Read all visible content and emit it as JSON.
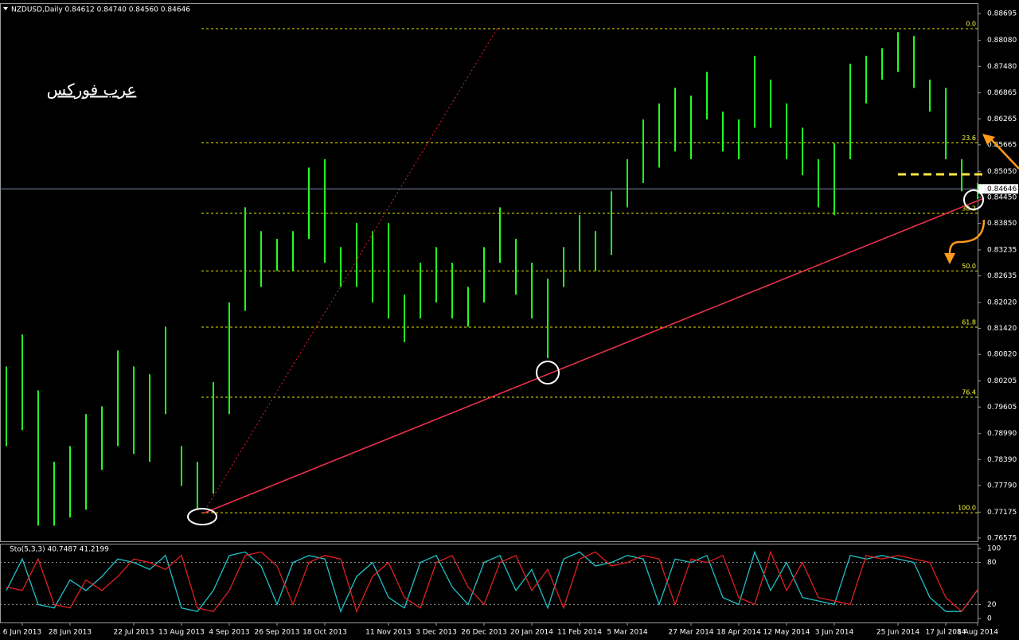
{
  "chart_data": [
    {
      "type": "hilo",
      "title": "NZDUSD,Daily  0.84612 0.84740 0.84560 0.84646",
      "annotation": "عرب فوركس",
      "color": "#22ff22",
      "categories": [
        null,
        "6 Jun 2013",
        null,
        null,
        "28 Jun 2013",
        null,
        null,
        null,
        "22 Jul 2013",
        null,
        null,
        "13 Aug 2013",
        null,
        null,
        "4 Sep 2013",
        null,
        null,
        "26 Sep 2013",
        null,
        null,
        "18 Oct 2013",
        null,
        null,
        null,
        "11 Nov 2013",
        null,
        null,
        "3 Dec 2013",
        null,
        null,
        "26 Dec 2013",
        null,
        null,
        "20 Jan 2014",
        null,
        null,
        "11 Feb 2014",
        null,
        null,
        "5 Mar 2014",
        null,
        null,
        null,
        "27 Mar 2014",
        null,
        null,
        "18 Apr 2014",
        null,
        null,
        "12 May 2014",
        null,
        null,
        "3 Jun 2014",
        null,
        null,
        null,
        "25 Jun 2014",
        null,
        null,
        "17 Jul 2014",
        null,
        "8 Aug 2014"
      ],
      "highs": [
        0.8054,
        0.8128,
        0.7999,
        0.7834,
        0.787,
        0.7944,
        0.7962,
        0.8091,
        0.8054,
        0.8036,
        0.8146,
        0.787,
        0.7834,
        0.8018,
        0.8202,
        0.8422,
        0.8367,
        0.8349,
        0.8367,
        0.8514,
        0.8533,
        0.833,
        0.8386,
        0.8367,
        0.8386,
        0.822,
        0.8294,
        0.833,
        0.8294,
        0.8238,
        0.833,
        0.8422,
        0.8349,
        0.8294,
        0.8257,
        0.833,
        0.8404,
        0.8367,
        0.8459,
        0.8533,
        0.8625,
        0.8662,
        0.8698,
        0.868,
        0.8735,
        0.8643,
        0.8625,
        0.8772,
        0.8717,
        0.8662,
        0.8606,
        0.8533,
        0.857,
        0.8754,
        0.8772,
        0.879,
        0.8827,
        0.8818,
        0.8717,
        0.8698,
        0.8533,
        0.8478
      ],
      "lows": [
        0.787,
        0.7907,
        0.7686,
        0.7686,
        0.7705,
        0.7723,
        0.7815,
        0.787,
        0.7852,
        0.7834,
        0.7944,
        0.7778,
        0.7723,
        0.776,
        0.7944,
        0.8183,
        0.8238,
        0.8275,
        0.8275,
        0.8349,
        0.8294,
        0.8238,
        0.8238,
        0.8202,
        0.8165,
        0.811,
        0.8165,
        0.8202,
        0.8165,
        0.8146,
        0.8202,
        0.8294,
        0.822,
        0.8165,
        0.8073,
        0.8238,
        0.8275,
        0.8275,
        0.8312,
        0.8422,
        0.8478,
        0.8514,
        0.8551,
        0.8533,
        0.8625,
        0.8551,
        0.8533,
        0.8606,
        0.8606,
        0.8533,
        0.8496,
        0.8422,
        0.8404,
        0.8533,
        0.8662,
        0.8717,
        0.8735,
        0.8698,
        0.8643,
        0.8533,
        0.8459,
        0.8441
      ],
      "last_price": 0.84646,
      "fib_levels": [
        {
          "label": "0.0",
          "value": 0.8835
        },
        {
          "label": "23.6",
          "value": 0.8571
        },
        {
          "label": "38.2",
          "value": 0.8408
        },
        {
          "label": "50.0",
          "value": 0.8275
        },
        {
          "label": "61.8",
          "value": 0.8145
        },
        {
          "label": "76.4",
          "value": 0.7983
        },
        {
          "label": "100.0",
          "value": 0.7716
        }
      ],
      "ylim": [
        0.765,
        0.8892
      ],
      "yticks": [
        0.88695,
        {
          "value": 0.8808,
          "label": "0.88080"
        },
        {
          "value": 0.8748,
          "label": "0.87480"
        },
        0.86865,
        0.86265,
        0.85665,
        {
          "value": 0.8505,
          "label": "0.85050"
        },
        {
          "value": 0.8445,
          "label": "0.84450"
        },
        {
          "value": 0.8385,
          "label": "0.83850"
        },
        0.83235,
        0.82635,
        {
          "value": 0.8202,
          "label": "0.82020"
        },
        {
          "value": 0.8142,
          "label": "0.81420"
        },
        {
          "value": 0.8082,
          "label": "0.80820"
        },
        0.80205,
        0.79605,
        {
          "value": 0.7899,
          "label": "0.78990"
        },
        {
          "value": 0.7839,
          "label": "0.78390"
        },
        {
          "value": 0.7779,
          "label": "0.77790"
        },
        0.77175,
        0.76575
      ]
    },
    {
      "type": "line",
      "title": "Sto(5,3,3) 40.7487 41.2199",
      "series": [
        {
          "color": "#20c0c8",
          "values": [
            40,
            85,
            20,
            15,
            55,
            40,
            60,
            85,
            80,
            70,
            90,
            15,
            10,
            40,
            90,
            95,
            75,
            20,
            80,
            90,
            85,
            10,
            60,
            80,
            30,
            15,
            80,
            90,
            45,
            20,
            80,
            90,
            40,
            70,
            15,
            85,
            95,
            75,
            80,
            90,
            85,
            20,
            85,
            80,
            90,
            30,
            20,
            95,
            40,
            80,
            30,
            25,
            20,
            90,
            85,
            90,
            85,
            80,
            30,
            10,
            10,
            40.7
          ]
        },
        {
          "color": "#e02020",
          "values": [
            45,
            40,
            85,
            20,
            15,
            55,
            40,
            60,
            85,
            80,
            70,
            90,
            15,
            10,
            40,
            90,
            95,
            75,
            20,
            80,
            90,
            85,
            10,
            60,
            80,
            30,
            15,
            80,
            90,
            45,
            20,
            80,
            90,
            40,
            70,
            15,
            85,
            95,
            75,
            80,
            90,
            85,
            20,
            85,
            80,
            90,
            30,
            20,
            95,
            40,
            80,
            30,
            25,
            20,
            90,
            85,
            90,
            85,
            80,
            30,
            10,
            41.2
          ]
        }
      ],
      "ylim": [
        -5.7,
        105.7
      ],
      "yticks": [
        100,
        80,
        20,
        0
      ]
    }
  ]
}
